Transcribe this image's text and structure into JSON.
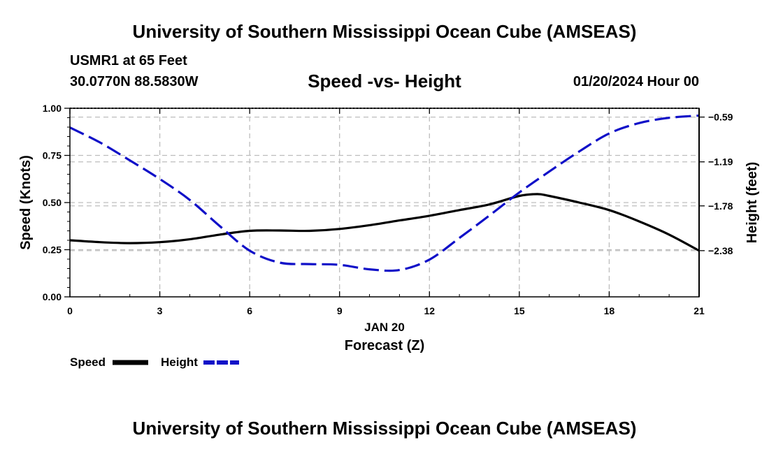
{
  "header": {
    "title": "University of Southern Mississippi Ocean Cube (AMSEAS)",
    "station": "USMR1 at 65 Feet",
    "coords": "30.0770N  88.5830W",
    "subtitle": "Speed -vs- Height",
    "datetime": "01/20/2024 Hour 00"
  },
  "footer": {
    "title": "University of Southern Mississippi Ocean Cube (AMSEAS)"
  },
  "chart_data": {
    "type": "line",
    "title": "Speed -vs- Height",
    "xlabel_date": "JAN 20",
    "xlabel": "Forecast (Z)",
    "ylabel": "Speed (Knots)",
    "y2label": "Height (feet)",
    "xlim": [
      0,
      21
    ],
    "ylim": [
      0,
      1
    ],
    "y2lim": [
      -2.999,
      -0.472
    ],
    "grid": true,
    "x_ticks": [
      0,
      3,
      6,
      9,
      12,
      15,
      18,
      21
    ],
    "y_ticks": [
      0,
      0.25,
      0.5,
      0.75,
      1.0
    ],
    "y_tick_labels": [
      "0.00",
      "0.25",
      "0.50",
      "0.75",
      "1.00"
    ],
    "y2_ticks": [
      -0.59,
      -1.19,
      -1.78,
      -2.38
    ],
    "y2_tick_labels": [
      "−0.59",
      "−1.19",
      "−1.78",
      "−2.38"
    ],
    "series": [
      {
        "name": "Speed",
        "axis": "left",
        "color": "#000000",
        "style": "solid",
        "x": [
          0,
          1,
          2,
          3,
          4,
          5,
          6,
          7,
          8,
          9,
          10,
          11,
          12,
          13,
          14,
          15,
          15.6,
          16,
          17,
          18,
          19,
          20,
          21
        ],
        "values": [
          0.3,
          0.29,
          0.285,
          0.29,
          0.305,
          0.33,
          0.35,
          0.352,
          0.35,
          0.36,
          0.38,
          0.405,
          0.43,
          0.46,
          0.49,
          0.535,
          0.545,
          0.535,
          0.5,
          0.46,
          0.4,
          0.33,
          0.245
        ]
      },
      {
        "name": "Height",
        "axis": "right",
        "color": "#1010c8",
        "style": "dashed",
        "x": [
          0,
          1,
          2,
          3,
          4,
          5,
          6,
          7,
          8,
          9,
          10,
          11,
          12,
          13,
          14,
          15,
          16,
          17,
          18,
          19,
          20,
          21
        ],
        "values": [
          -0.73,
          -0.93,
          -1.17,
          -1.42,
          -1.7,
          -2.05,
          -2.38,
          -2.54,
          -2.56,
          -2.57,
          -2.63,
          -2.64,
          -2.5,
          -2.21,
          -1.91,
          -1.6,
          -1.32,
          -1.05,
          -0.81,
          -0.67,
          -0.6,
          -0.57
        ]
      }
    ],
    "legend": [
      {
        "label": "Speed",
        "color": "#000000",
        "style": "solid"
      },
      {
        "label": "Height",
        "color": "#1010c8",
        "style": "dashed"
      }
    ]
  }
}
